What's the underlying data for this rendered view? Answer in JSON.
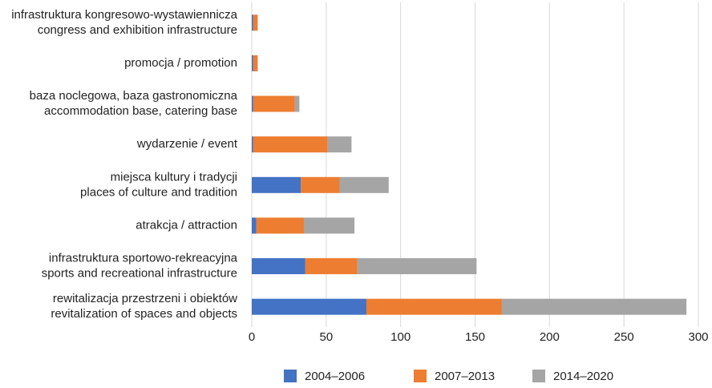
{
  "chart_data": {
    "type": "bar",
    "orientation": "horizontal",
    "stacked": true,
    "categories": [
      [
        "infrastruktura kongresowo-wystawiennicza",
        "congress and exhibition infrastructure"
      ],
      [
        "promocja / promotion"
      ],
      [
        "baza noclegowa, baza gastronomiczna",
        "accommodation base, catering base"
      ],
      [
        "wydarzenie / event"
      ],
      [
        "miejsca kultury i tradycji",
        "places of culture and tradition"
      ],
      [
        "atrakcja / attraction"
      ],
      [
        "infrastruktura sportowo-rekreacyjna",
        "sports and recreational infrastructure"
      ],
      [
        "rewitalizacja przestrzeni i obiektów",
        "revitalization of spaces and objects"
      ]
    ],
    "series": [
      {
        "name": "2004–2006",
        "color": "#4472c4",
        "values": [
          1,
          1,
          1,
          1,
          33,
          3,
          36,
          77
        ]
      },
      {
        "name": "2007–2013",
        "color": "#ed7d31",
        "values": [
          3,
          3,
          28,
          50,
          26,
          32,
          35,
          91
        ]
      },
      {
        "name": "2014–2020",
        "color": "#a5a5a5",
        "values": [
          0,
          0,
          3,
          16,
          33,
          34,
          80,
          124
        ]
      }
    ],
    "xlim": [
      0,
      300
    ],
    "xticks": [
      0,
      50,
      100,
      150,
      200,
      250,
      300
    ],
    "grid": true,
    "legend": "bottom"
  }
}
